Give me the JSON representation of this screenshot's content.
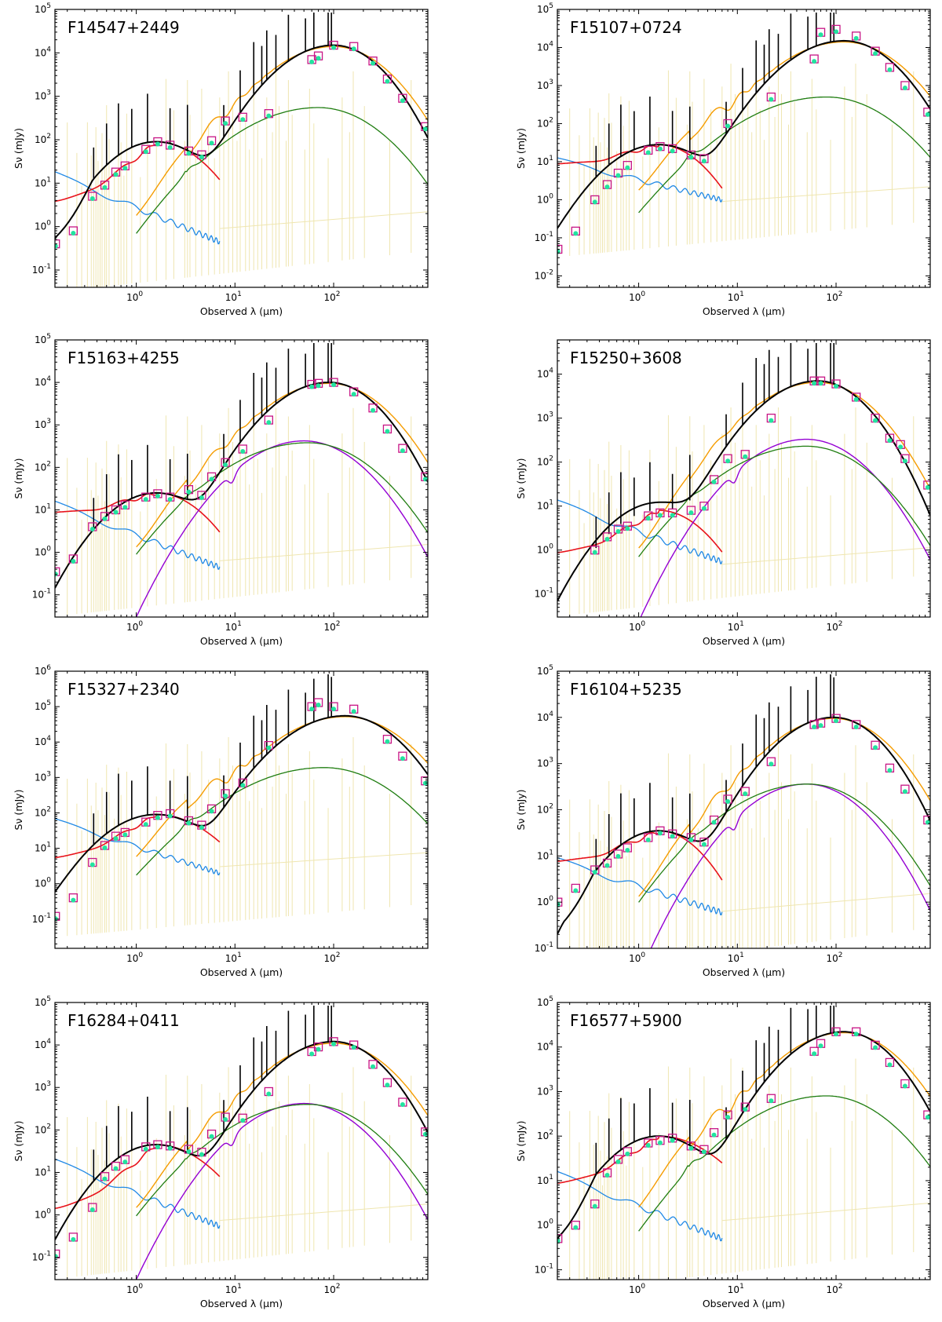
{
  "figure": {
    "xlabel": "Observed λ (μm)",
    "ylabel": "Sν (mJy)",
    "xlim": [
      0.15,
      900
    ],
    "x_tick_labels": [
      "10^0",
      "10^1",
      "10^2"
    ],
    "components": [
      {
        "name": "total model",
        "color": "#000000"
      },
      {
        "name": "stellar (unattenuated)",
        "color": "#1f88e5"
      },
      {
        "name": "stellar (attenuated)",
        "color": "#e8121a"
      },
      {
        "name": "starburst",
        "color": "#f59c00"
      },
      {
        "name": "AGN torus",
        "color": "#9400d3"
      },
      {
        "name": "cirrus",
        "color": "#1f7d10"
      },
      {
        "name": "emission lines",
        "color": "#efe6b0"
      },
      {
        "name": "observed photometry",
        "color": "#c71585"
      },
      {
        "name": "model photometry",
        "color": "#22e3a0"
      }
    ]
  },
  "chart_data": [
    {
      "type": "line",
      "title": "F14547+2449",
      "xlabel": "Observed λ (μm)",
      "ylabel": "Sν (mJy)",
      "xlim": [
        0.15,
        900
      ],
      "ylim": [
        0.04,
        100000
      ],
      "y_ticks": [
        -1,
        0,
        1,
        2,
        3,
        4,
        5
      ],
      "x_ticks": [
        0,
        1,
        2
      ],
      "peak_wavelength_um": 100,
      "components": {
        "total": {
          "peak_mjy": 15000,
          "end_mjy": 150
        },
        "stellar_unattenuated": {
          "start_mjy": 16,
          "end_mjy": 0.45
        },
        "stellar_attenuated": {
          "start_mjy": 3.5,
          "peak_mjy": 90,
          "end_mjy": 12
        },
        "starburst": {
          "peak_mjy": 14000
        },
        "agn": null,
        "cirrus": {
          "peak_mjy": 550,
          "peak_wavelength_um": 70
        }
      },
      "observed_photometry": [
        {
          "x": 0.152,
          "y": 0.4
        },
        {
          "x": 0.23,
          "y": 0.8
        },
        {
          "x": 0.36,
          "y": 5
        },
        {
          "x": 0.48,
          "y": 9
        },
        {
          "x": 0.62,
          "y": 18
        },
        {
          "x": 0.77,
          "y": 25
        },
        {
          "x": 1.25,
          "y": 60
        },
        {
          "x": 1.65,
          "y": 90
        },
        {
          "x": 2.2,
          "y": 75
        },
        {
          "x": 3.4,
          "y": 55
        },
        {
          "x": 4.6,
          "y": 45
        },
        {
          "x": 5.8,
          "y": 95
        },
        {
          "x": 8,
          "y": 270
        },
        {
          "x": 12,
          "y": 330
        },
        {
          "x": 22,
          "y": 400
        },
        {
          "x": 60,
          "y": 7000
        },
        {
          "x": 70,
          "y": 8500
        },
        {
          "x": 100,
          "y": 15000
        },
        {
          "x": 160,
          "y": 14000
        },
        {
          "x": 250,
          "y": 6500
        },
        {
          "x": 350,
          "y": 2500
        },
        {
          "x": 500,
          "y": 900
        },
        {
          "x": 850,
          "y": 200
        }
      ]
    },
    {
      "type": "line",
      "title": "F15107+0724",
      "xlabel": "Observed λ (μm)",
      "ylabel": "Sν (mJy)",
      "xlim": [
        0.15,
        900
      ],
      "ylim": [
        0.005,
        100000
      ],
      "y_ticks": [
        -2,
        -1,
        0,
        1,
        2,
        3,
        4,
        5
      ],
      "x_ticks": [
        0,
        1,
        2
      ],
      "peak_wavelength_um": 120,
      "components": {
        "total": {
          "peak_mjy": 15000,
          "end_mjy": 200
        },
        "stellar_unattenuated": {
          "start_mjy": 11,
          "end_mjy": 1.0
        },
        "stellar_attenuated": {
          "start_mjy": 8,
          "peak_mjy": 28,
          "end_mjy": 2
        },
        "starburst": {
          "peak_mjy": 14000
        },
        "agn": null,
        "cirrus": {
          "peak_mjy": 500,
          "peak_wavelength_um": 80
        }
      },
      "observed_photometry": [
        {
          "x": 0.152,
          "y": 0.05
        },
        {
          "x": 0.23,
          "y": 0.15
        },
        {
          "x": 0.36,
          "y": 1
        },
        {
          "x": 0.48,
          "y": 2.5
        },
        {
          "x": 0.62,
          "y": 5
        },
        {
          "x": 0.77,
          "y": 8
        },
        {
          "x": 1.25,
          "y": 20
        },
        {
          "x": 1.65,
          "y": 25
        },
        {
          "x": 2.2,
          "y": 22
        },
        {
          "x": 3.4,
          "y": 15
        },
        {
          "x": 4.6,
          "y": 12
        },
        {
          "x": 8,
          "y": 100
        },
        {
          "x": 22,
          "y": 500
        },
        {
          "x": 60,
          "y": 5000
        },
        {
          "x": 70,
          "y": 25000
        },
        {
          "x": 100,
          "y": 30000
        },
        {
          "x": 160,
          "y": 20000
        },
        {
          "x": 250,
          "y": 8000
        },
        {
          "x": 350,
          "y": 3000
        },
        {
          "x": 500,
          "y": 1000
        },
        {
          "x": 850,
          "y": 200
        }
      ]
    },
    {
      "type": "line",
      "title": "F15163+4255",
      "xlabel": "Observed λ (μm)",
      "ylabel": "Sν (mJy)",
      "xlim": [
        0.15,
        900
      ],
      "ylim": [
        0.03,
        100000
      ],
      "y_ticks": [
        -1,
        0,
        1,
        2,
        3,
        4,
        5
      ],
      "x_ticks": [
        0,
        1,
        2
      ],
      "peak_wavelength_um": 90,
      "components": {
        "total": {
          "peak_mjy": 10000,
          "end_mjy": 40
        },
        "stellar_unattenuated": {
          "start_mjy": 14,
          "end_mjy": 0.45
        },
        "stellar_attenuated": {
          "start_mjy": 8,
          "peak_mjy": 25,
          "end_mjy": 3
        },
        "starburst": {
          "peak_mjy": 9500
        },
        "agn": {
          "peak_mjy": 420,
          "peak_wavelength_um": 50
        },
        "cirrus": {
          "peak_mjy": 380,
          "peak_wavelength_um": 55
        }
      },
      "observed_photometry": [
        {
          "x": 0.152,
          "y": 0.35
        },
        {
          "x": 0.23,
          "y": 0.7
        },
        {
          "x": 0.36,
          "y": 4
        },
        {
          "x": 0.48,
          "y": 7
        },
        {
          "x": 0.62,
          "y": 10
        },
        {
          "x": 0.77,
          "y": 13
        },
        {
          "x": 1.25,
          "y": 20
        },
        {
          "x": 1.65,
          "y": 24
        },
        {
          "x": 2.2,
          "y": 20
        },
        {
          "x": 3.4,
          "y": 30
        },
        {
          "x": 4.6,
          "y": 22
        },
        {
          "x": 5.8,
          "y": 60
        },
        {
          "x": 8,
          "y": 130
        },
        {
          "x": 12,
          "y": 270
        },
        {
          "x": 22,
          "y": 1300
        },
        {
          "x": 60,
          "y": 9000
        },
        {
          "x": 70,
          "y": 9500
        },
        {
          "x": 100,
          "y": 10000
        },
        {
          "x": 160,
          "y": 6000
        },
        {
          "x": 250,
          "y": 2500
        },
        {
          "x": 350,
          "y": 800
        },
        {
          "x": 500,
          "y": 280
        },
        {
          "x": 850,
          "y": 60
        }
      ]
    },
    {
      "type": "line",
      "title": "F15250+3608",
      "xlabel": "Observed λ (μm)",
      "ylabel": "Sν (mJy)",
      "xlim": [
        0.15,
        900
      ],
      "ylim": [
        0.03,
        60000
      ],
      "y_ticks": [
        -1,
        0,
        1,
        2,
        3,
        4
      ],
      "x_ticks": [
        0,
        1,
        2
      ],
      "peak_wavelength_um": 65,
      "components": {
        "total": {
          "peak_mjy": 7000,
          "end_mjy": 20
        },
        "stellar_unattenuated": {
          "start_mjy": 12,
          "end_mjy": 0.55
        },
        "stellar_attenuated": {
          "start_mjy": 0.8,
          "peak_mjy": 8,
          "end_mjy": 0.9
        },
        "starburst": {
          "peak_mjy": 6500
        },
        "agn": {
          "peak_mjy": 330,
          "peak_wavelength_um": 50
        },
        "cirrus": {
          "peak_mjy": 230,
          "peak_wavelength_um": 50
        }
      },
      "observed_photometry": [
        {
          "x": 0.36,
          "y": 1
        },
        {
          "x": 0.48,
          "y": 2
        },
        {
          "x": 0.62,
          "y": 3
        },
        {
          "x": 0.77,
          "y": 3.5
        },
        {
          "x": 1.25,
          "y": 6
        },
        {
          "x": 1.65,
          "y": 7
        },
        {
          "x": 2.2,
          "y": 7
        },
        {
          "x": 3.4,
          "y": 8
        },
        {
          "x": 4.6,
          "y": 10
        },
        {
          "x": 5.8,
          "y": 40
        },
        {
          "x": 8,
          "y": 120
        },
        {
          "x": 12,
          "y": 150
        },
        {
          "x": 22,
          "y": 1000
        },
        {
          "x": 60,
          "y": 7000
        },
        {
          "x": 70,
          "y": 7000
        },
        {
          "x": 100,
          "y": 6000
        },
        {
          "x": 160,
          "y": 3000
        },
        {
          "x": 250,
          "y": 1000
        },
        {
          "x": 350,
          "y": 350
        },
        {
          "x": 450,
          "y": 250
        },
        {
          "x": 500,
          "y": 120
        },
        {
          "x": 850,
          "y": 30
        }
      ]
    },
    {
      "type": "line",
      "title": "F15327+2340",
      "xlabel": "Observed λ (μm)",
      "ylabel": "Sν (mJy)",
      "xlim": [
        0.15,
        900
      ],
      "ylim": [
        0.015,
        1000000
      ],
      "y_ticks": [
        -1,
        0,
        1,
        2,
        3,
        4,
        5,
        6
      ],
      "x_ticks": [
        0,
        1,
        2
      ],
      "peak_wavelength_um": 130,
      "components": {
        "total": {
          "peak_mjy": 55000,
          "end_mjy": 800
        },
        "stellar_unattenuated": {
          "start_mjy": 60,
          "end_mjy": 2
        },
        "stellar_attenuated": {
          "start_mjy": 5,
          "peak_mjy": 90,
          "end_mjy": 15
        },
        "starburst": {
          "peak_mjy": 52000
        },
        "agn": null,
        "cirrus": {
          "peak_mjy": 1900,
          "peak_wavelength_um": 80
        }
      },
      "observed_photometry": [
        {
          "x": 0.152,
          "y": 0.12
        },
        {
          "x": 0.23,
          "y": 0.4
        },
        {
          "x": 0.36,
          "y": 4
        },
        {
          "x": 0.48,
          "y": 12
        },
        {
          "x": 0.62,
          "y": 22
        },
        {
          "x": 0.77,
          "y": 28
        },
        {
          "x": 1.25,
          "y": 55
        },
        {
          "x": 1.65,
          "y": 85
        },
        {
          "x": 2.2,
          "y": 95
        },
        {
          "x": 3.4,
          "y": 60
        },
        {
          "x": 4.6,
          "y": 45
        },
        {
          "x": 5.8,
          "y": 130
        },
        {
          "x": 8,
          "y": 350
        },
        {
          "x": 12,
          "y": 700
        },
        {
          "x": 22,
          "y": 8000
        },
        {
          "x": 60,
          "y": 100000
        },
        {
          "x": 70,
          "y": 130000
        },
        {
          "x": 100,
          "y": 100000
        },
        {
          "x": 160,
          "y": 85000
        },
        {
          "x": 350,
          "y": 12000
        },
        {
          "x": 500,
          "y": 4000
        },
        {
          "x": 850,
          "y": 800
        }
      ]
    },
    {
      "type": "line",
      "title": "F16104+5235",
      "xlabel": "Observed λ (μm)",
      "ylabel": "Sν (mJy)",
      "xlim": [
        0.15,
        900
      ],
      "ylim": [
        0.1,
        100000
      ],
      "y_ticks": [
        -1,
        0,
        1,
        2,
        3,
        4,
        5
      ],
      "x_ticks": [
        0,
        1,
        2
      ],
      "peak_wavelength_um": 95,
      "components": {
        "total": {
          "peak_mjy": 10000,
          "end_mjy": 60
        },
        "stellar_unattenuated": {
          "start_mjy": 8,
          "end_mjy": 0.6
        },
        "stellar_attenuated": {
          "start_mjy": 7,
          "peak_mjy": 35,
          "end_mjy": 3
        },
        "starburst": {
          "peak_mjy": 9500
        },
        "agn": {
          "peak_mjy": 360,
          "peak_wavelength_um": 50
        },
        "cirrus": {
          "peak_mjy": 360,
          "peak_wavelength_um": 52
        }
      },
      "observed_photometry": [
        {
          "x": 0.152,
          "y": 1
        },
        {
          "x": 0.23,
          "y": 2
        },
        {
          "x": 0.36,
          "y": 5
        },
        {
          "x": 0.48,
          "y": 7
        },
        {
          "x": 0.62,
          "y": 11
        },
        {
          "x": 0.77,
          "y": 15
        },
        {
          "x": 1.25,
          "y": 25
        },
        {
          "x": 1.65,
          "y": 35
        },
        {
          "x": 2.2,
          "y": 30
        },
        {
          "x": 3.4,
          "y": 25
        },
        {
          "x": 4.6,
          "y": 20
        },
        {
          "x": 5.8,
          "y": 60
        },
        {
          "x": 8,
          "y": 170
        },
        {
          "x": 12,
          "y": 250
        },
        {
          "x": 22,
          "y": 1100
        },
        {
          "x": 60,
          "y": 7000
        },
        {
          "x": 70,
          "y": 7500
        },
        {
          "x": 100,
          "y": 9500
        },
        {
          "x": 160,
          "y": 7000
        },
        {
          "x": 250,
          "y": 2500
        },
        {
          "x": 350,
          "y": 800
        },
        {
          "x": 500,
          "y": 280
        },
        {
          "x": 850,
          "y": 60
        }
      ]
    },
    {
      "type": "line",
      "title": "F16284+0411",
      "xlabel": "Observed λ (μm)",
      "ylabel": "Sν (mJy)",
      "xlim": [
        0.15,
        900
      ],
      "ylim": [
        0.03,
        100000
      ],
      "y_ticks": [
        -1,
        0,
        1,
        2,
        3,
        4,
        5
      ],
      "x_ticks": [
        0,
        1,
        2
      ],
      "peak_wavelength_um": 100,
      "components": {
        "total": {
          "peak_mjy": 12000,
          "end_mjy": 60
        },
        "stellar_unattenuated": {
          "start_mjy": 18,
          "end_mjy": 0.55
        },
        "stellar_attenuated": {
          "start_mjy": 1.3,
          "peak_mjy": 45,
          "end_mjy": 8
        },
        "starburst": {
          "peak_mjy": 11000
        },
        "agn": {
          "peak_mjy": 420,
          "peak_wavelength_um": 50
        },
        "cirrus": {
          "peak_mjy": 400,
          "peak_wavelength_um": 55
        }
      },
      "observed_photometry": [
        {
          "x": 0.152,
          "y": 0.12
        },
        {
          "x": 0.23,
          "y": 0.3
        },
        {
          "x": 0.36,
          "y": 1.5
        },
        {
          "x": 0.48,
          "y": 8
        },
        {
          "x": 0.62,
          "y": 14
        },
        {
          "x": 0.77,
          "y": 20
        },
        {
          "x": 1.25,
          "y": 40
        },
        {
          "x": 1.65,
          "y": 45
        },
        {
          "x": 2.2,
          "y": 42
        },
        {
          "x": 3.4,
          "y": 35
        },
        {
          "x": 4.6,
          "y": 30
        },
        {
          "x": 5.8,
          "y": 80
        },
        {
          "x": 8,
          "y": 200
        },
        {
          "x": 12,
          "y": 190
        },
        {
          "x": 22,
          "y": 800
        },
        {
          "x": 60,
          "y": 7000
        },
        {
          "x": 70,
          "y": 9000
        },
        {
          "x": 100,
          "y": 12000
        },
        {
          "x": 160,
          "y": 10000
        },
        {
          "x": 250,
          "y": 3500
        },
        {
          "x": 350,
          "y": 1300
        },
        {
          "x": 500,
          "y": 450
        },
        {
          "x": 850,
          "y": 90
        }
      ]
    },
    {
      "type": "line",
      "title": "F16577+5900",
      "xlabel": "Observed λ (μm)",
      "ylabel": "Sν (mJy)",
      "xlim": [
        0.15,
        900
      ],
      "ylim": [
        0.06,
        100000
      ],
      "y_ticks": [
        -1,
        0,
        1,
        2,
        3,
        4,
        5
      ],
      "x_ticks": [
        0,
        1,
        2
      ],
      "peak_wavelength_um": 120,
      "components": {
        "total": {
          "peak_mjy": 22000,
          "end_mjy": 300
        },
        "stellar_unattenuated": {
          "start_mjy": 14,
          "end_mjy": 0.5
        },
        "stellar_attenuated": {
          "start_mjy": 8,
          "peak_mjy": 100,
          "end_mjy": 25
        },
        "starburst": {
          "peak_mjy": 21000
        },
        "agn": null,
        "cirrus": {
          "peak_mjy": 800,
          "peak_wavelength_um": 80
        }
      },
      "observed_photometry": [
        {
          "x": 0.152,
          "y": 0.5
        },
        {
          "x": 0.23,
          "y": 1
        },
        {
          "x": 0.36,
          "y": 3
        },
        {
          "x": 0.48,
          "y": 15
        },
        {
          "x": 0.62,
          "y": 30
        },
        {
          "x": 0.77,
          "y": 45
        },
        {
          "x": 1.25,
          "y": 70
        },
        {
          "x": 1.65,
          "y": 80
        },
        {
          "x": 2.2,
          "y": 90
        },
        {
          "x": 3.4,
          "y": 60
        },
        {
          "x": 4.6,
          "y": 50
        },
        {
          "x": 5.8,
          "y": 120
        },
        {
          "x": 8,
          "y": 300
        },
        {
          "x": 12,
          "y": 450
        },
        {
          "x": 22,
          "y": 700
        },
        {
          "x": 60,
          "y": 8000
        },
        {
          "x": 70,
          "y": 12000
        },
        {
          "x": 100,
          "y": 22000
        },
        {
          "x": 160,
          "y": 22000
        },
        {
          "x": 250,
          "y": 11000
        },
        {
          "x": 350,
          "y": 4500
        },
        {
          "x": 500,
          "y": 1500
        },
        {
          "x": 850,
          "y": 300
        }
      ]
    }
  ]
}
